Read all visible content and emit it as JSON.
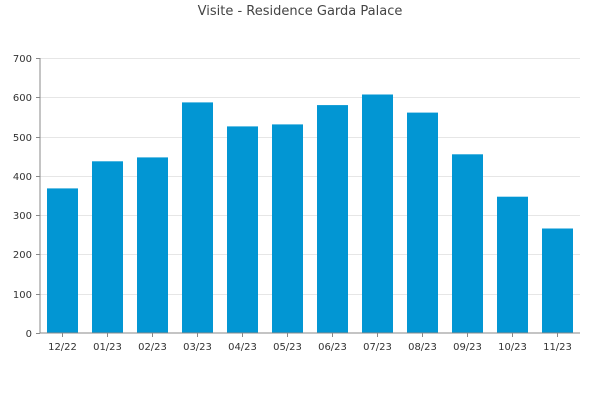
{
  "chart_data": {
    "type": "bar",
    "title": "Visite - Residence Garda Palace",
    "categories": [
      "12/22",
      "01/23",
      "02/23",
      "03/23",
      "04/23",
      "05/23",
      "06/23",
      "07/23",
      "08/23",
      "09/23",
      "10/23",
      "11/23"
    ],
    "values": [
      368,
      437,
      447,
      587,
      526,
      531,
      580,
      607,
      561,
      455,
      347,
      266
    ],
    "ylim": [
      0,
      700
    ],
    "yticks": [
      0,
      100,
      200,
      300,
      400,
      500,
      600,
      700
    ],
    "xlabel": "",
    "ylabel": "",
    "grid": true,
    "bar_color": "#0296d3"
  }
}
